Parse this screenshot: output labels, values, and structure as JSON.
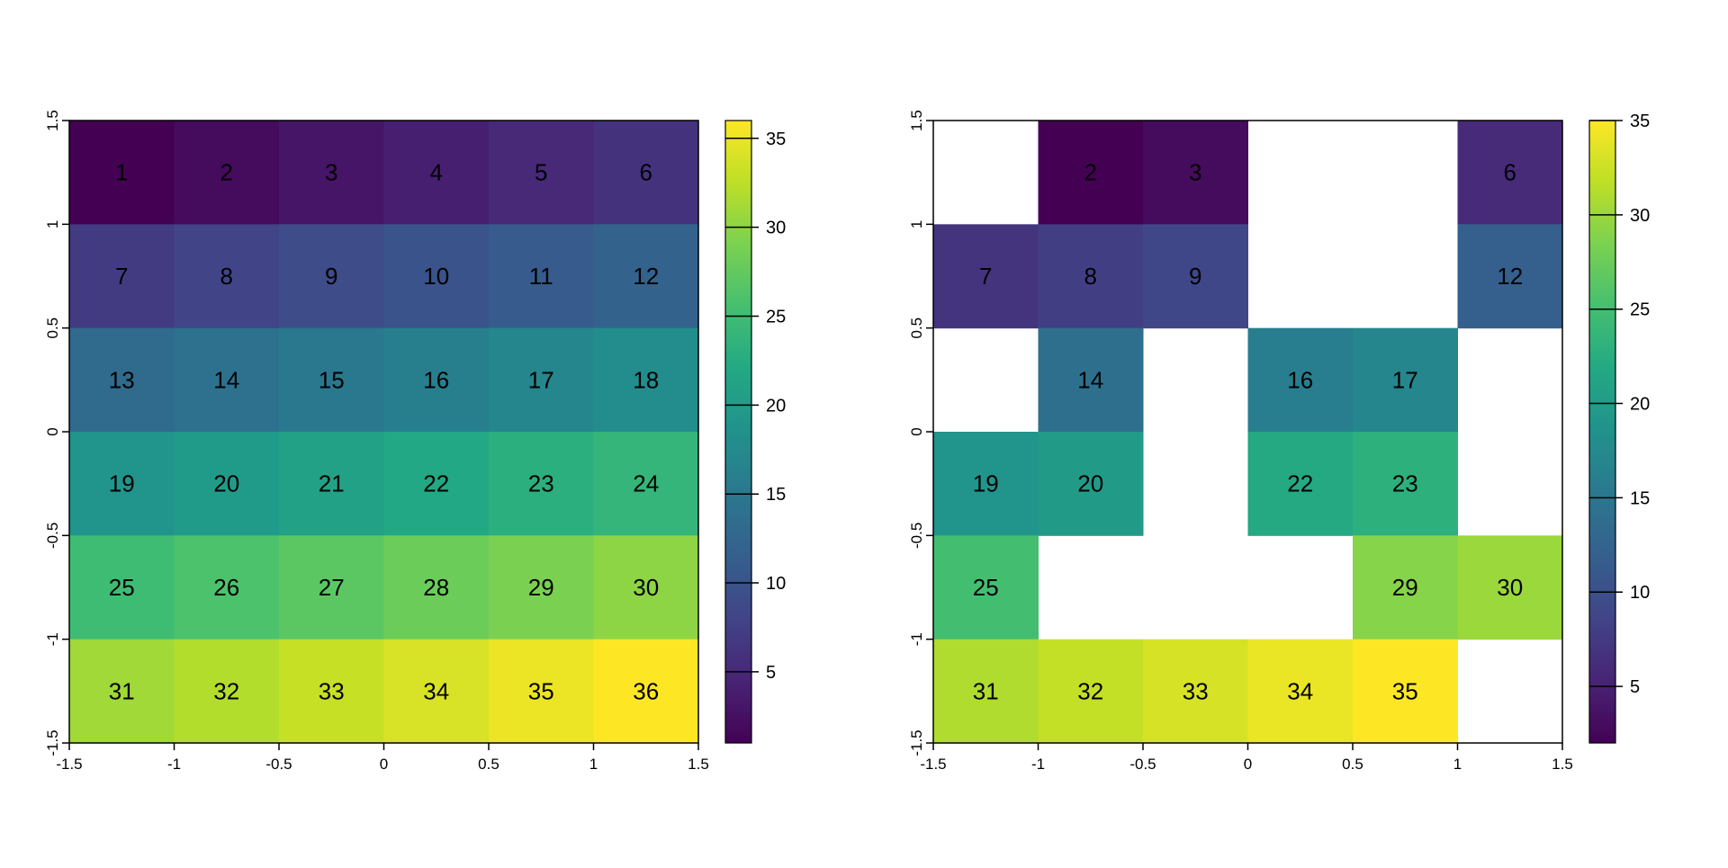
{
  "chart_data": [
    {
      "type": "heatmap",
      "title": "",
      "xlabel": "",
      "ylabel": "",
      "xlim": [
        -1.5,
        1.5
      ],
      "ylim": [
        -1.5,
        1.5
      ],
      "x_ticks": [
        "-1.5",
        "-1",
        "-0.5",
        "0",
        "0.5",
        "1",
        "1.5"
      ],
      "y_ticks": [
        "-1.5",
        "-1",
        "-0.5",
        "0",
        "0.5",
        "1",
        "1.5"
      ],
      "colormap": "viridis",
      "color_range": [
        1,
        36
      ],
      "legend_ticks": [
        "5",
        "10",
        "15",
        "20",
        "25",
        "30",
        "35"
      ],
      "legend_placement": "right",
      "grid": [
        [
          1,
          2,
          3,
          4,
          5,
          6
        ],
        [
          7,
          8,
          9,
          10,
          11,
          12
        ],
        [
          13,
          14,
          15,
          16,
          17,
          18
        ],
        [
          19,
          20,
          21,
          22,
          23,
          24
        ],
        [
          25,
          26,
          27,
          28,
          29,
          30
        ],
        [
          31,
          32,
          33,
          34,
          35,
          36
        ]
      ]
    },
    {
      "type": "heatmap",
      "title": "",
      "xlabel": "",
      "ylabel": "",
      "xlim": [
        -1.5,
        1.5
      ],
      "ylim": [
        -1.5,
        1.5
      ],
      "x_ticks": [
        "-1.5",
        "-1",
        "-0.5",
        "0",
        "0.5",
        "1",
        "1.5"
      ],
      "y_ticks": [
        "-1.5",
        "-1",
        "-0.5",
        "0",
        "0.5",
        "1",
        "1.5"
      ],
      "colormap": "viridis",
      "color_range": [
        2,
        35
      ],
      "legend_ticks": [
        "5",
        "10",
        "15",
        "20",
        "25",
        "30",
        "35"
      ],
      "legend_placement": "right",
      "grid": [
        [
          null,
          2,
          3,
          null,
          null,
          6
        ],
        [
          7,
          8,
          9,
          null,
          null,
          12
        ],
        [
          null,
          14,
          null,
          16,
          17,
          null
        ],
        [
          19,
          20,
          null,
          22,
          23,
          null
        ],
        [
          25,
          null,
          null,
          null,
          29,
          30
        ],
        [
          31,
          32,
          33,
          34,
          35,
          null
        ]
      ]
    }
  ],
  "colors": {
    "viridis": [
      "#440154",
      "#482475",
      "#414487",
      "#355f8d",
      "#2a788e",
      "#21918c",
      "#22a884",
      "#44bf70",
      "#7ad151",
      "#bddf26",
      "#fde725"
    ]
  }
}
